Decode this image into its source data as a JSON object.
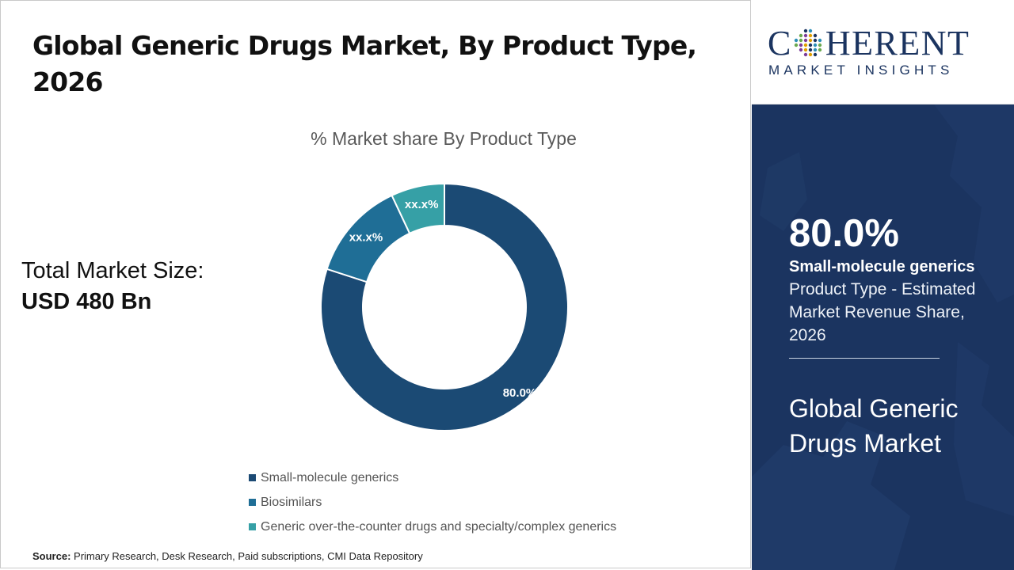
{
  "page": {
    "title": "Global Generic Drugs Market, By Product Type, 2026",
    "market_size_label": "Total Market Size:",
    "market_size_value": "USD 480 Bn",
    "source_label": "Source:",
    "source_text": " Primary Research, Desk Research, Paid subscriptions, CMI Data Repository"
  },
  "chart_data": {
    "type": "pie",
    "variant": "donut",
    "title": "% Market share By Product Type",
    "categories": [
      "Small-molecule generics",
      "Biosimilars",
      "Generic over-the-counter drugs and specialty/complex generics"
    ],
    "values": [
      80.0,
      13.0,
      7.0
    ],
    "data_labels": [
      "80.0%",
      "xx.x%",
      "xx.x%"
    ],
    "colors": [
      "#1b4a74",
      "#1f6e96",
      "#36a0a6"
    ],
    "legend_position": "bottom"
  },
  "sidebar": {
    "logo_main_left": "C",
    "logo_main_right": "HERENT",
    "logo_sub": "MARKET INSIGHTS",
    "highlight_value": "80.0%",
    "highlight_segment": "Small-molecule generics",
    "highlight_desc": "Product Type - Estimated Market Revenue Share, 2026",
    "market_name": "Global Generic Drugs Market",
    "background_color": "#1b3460"
  }
}
